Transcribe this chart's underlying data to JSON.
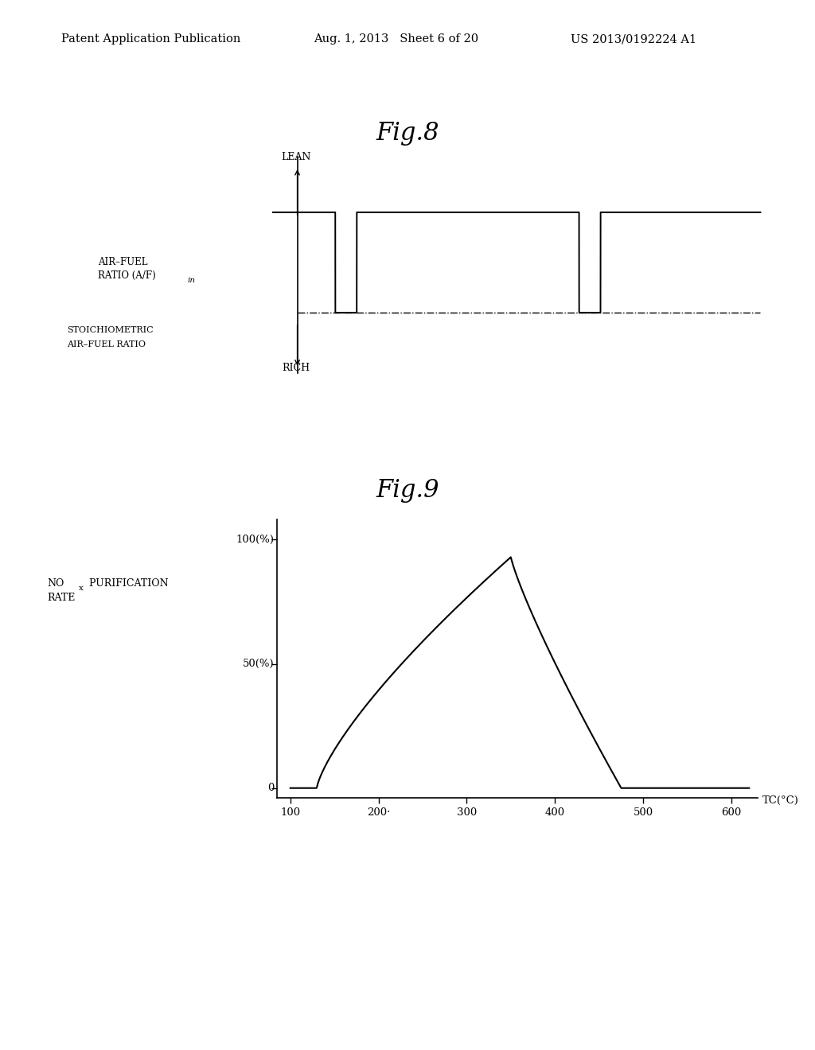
{
  "background_color": "#ffffff",
  "header_left": "Patent Application Publication",
  "header_mid": "Aug. 1, 2013   Sheet 6 of 20",
  "header_right": "US 2013/0192224 A1",
  "fig8_title": "Fig.8",
  "fig9_title": "Fig.9",
  "fig8_lean_label": "LEAN",
  "fig8_rich_label": "RICH",
  "fig9_xtick_labels": [
    "100",
    "200·",
    "300",
    "400",
    "500",
    "600"
  ],
  "fig9_xlabel": "TC(°C)"
}
